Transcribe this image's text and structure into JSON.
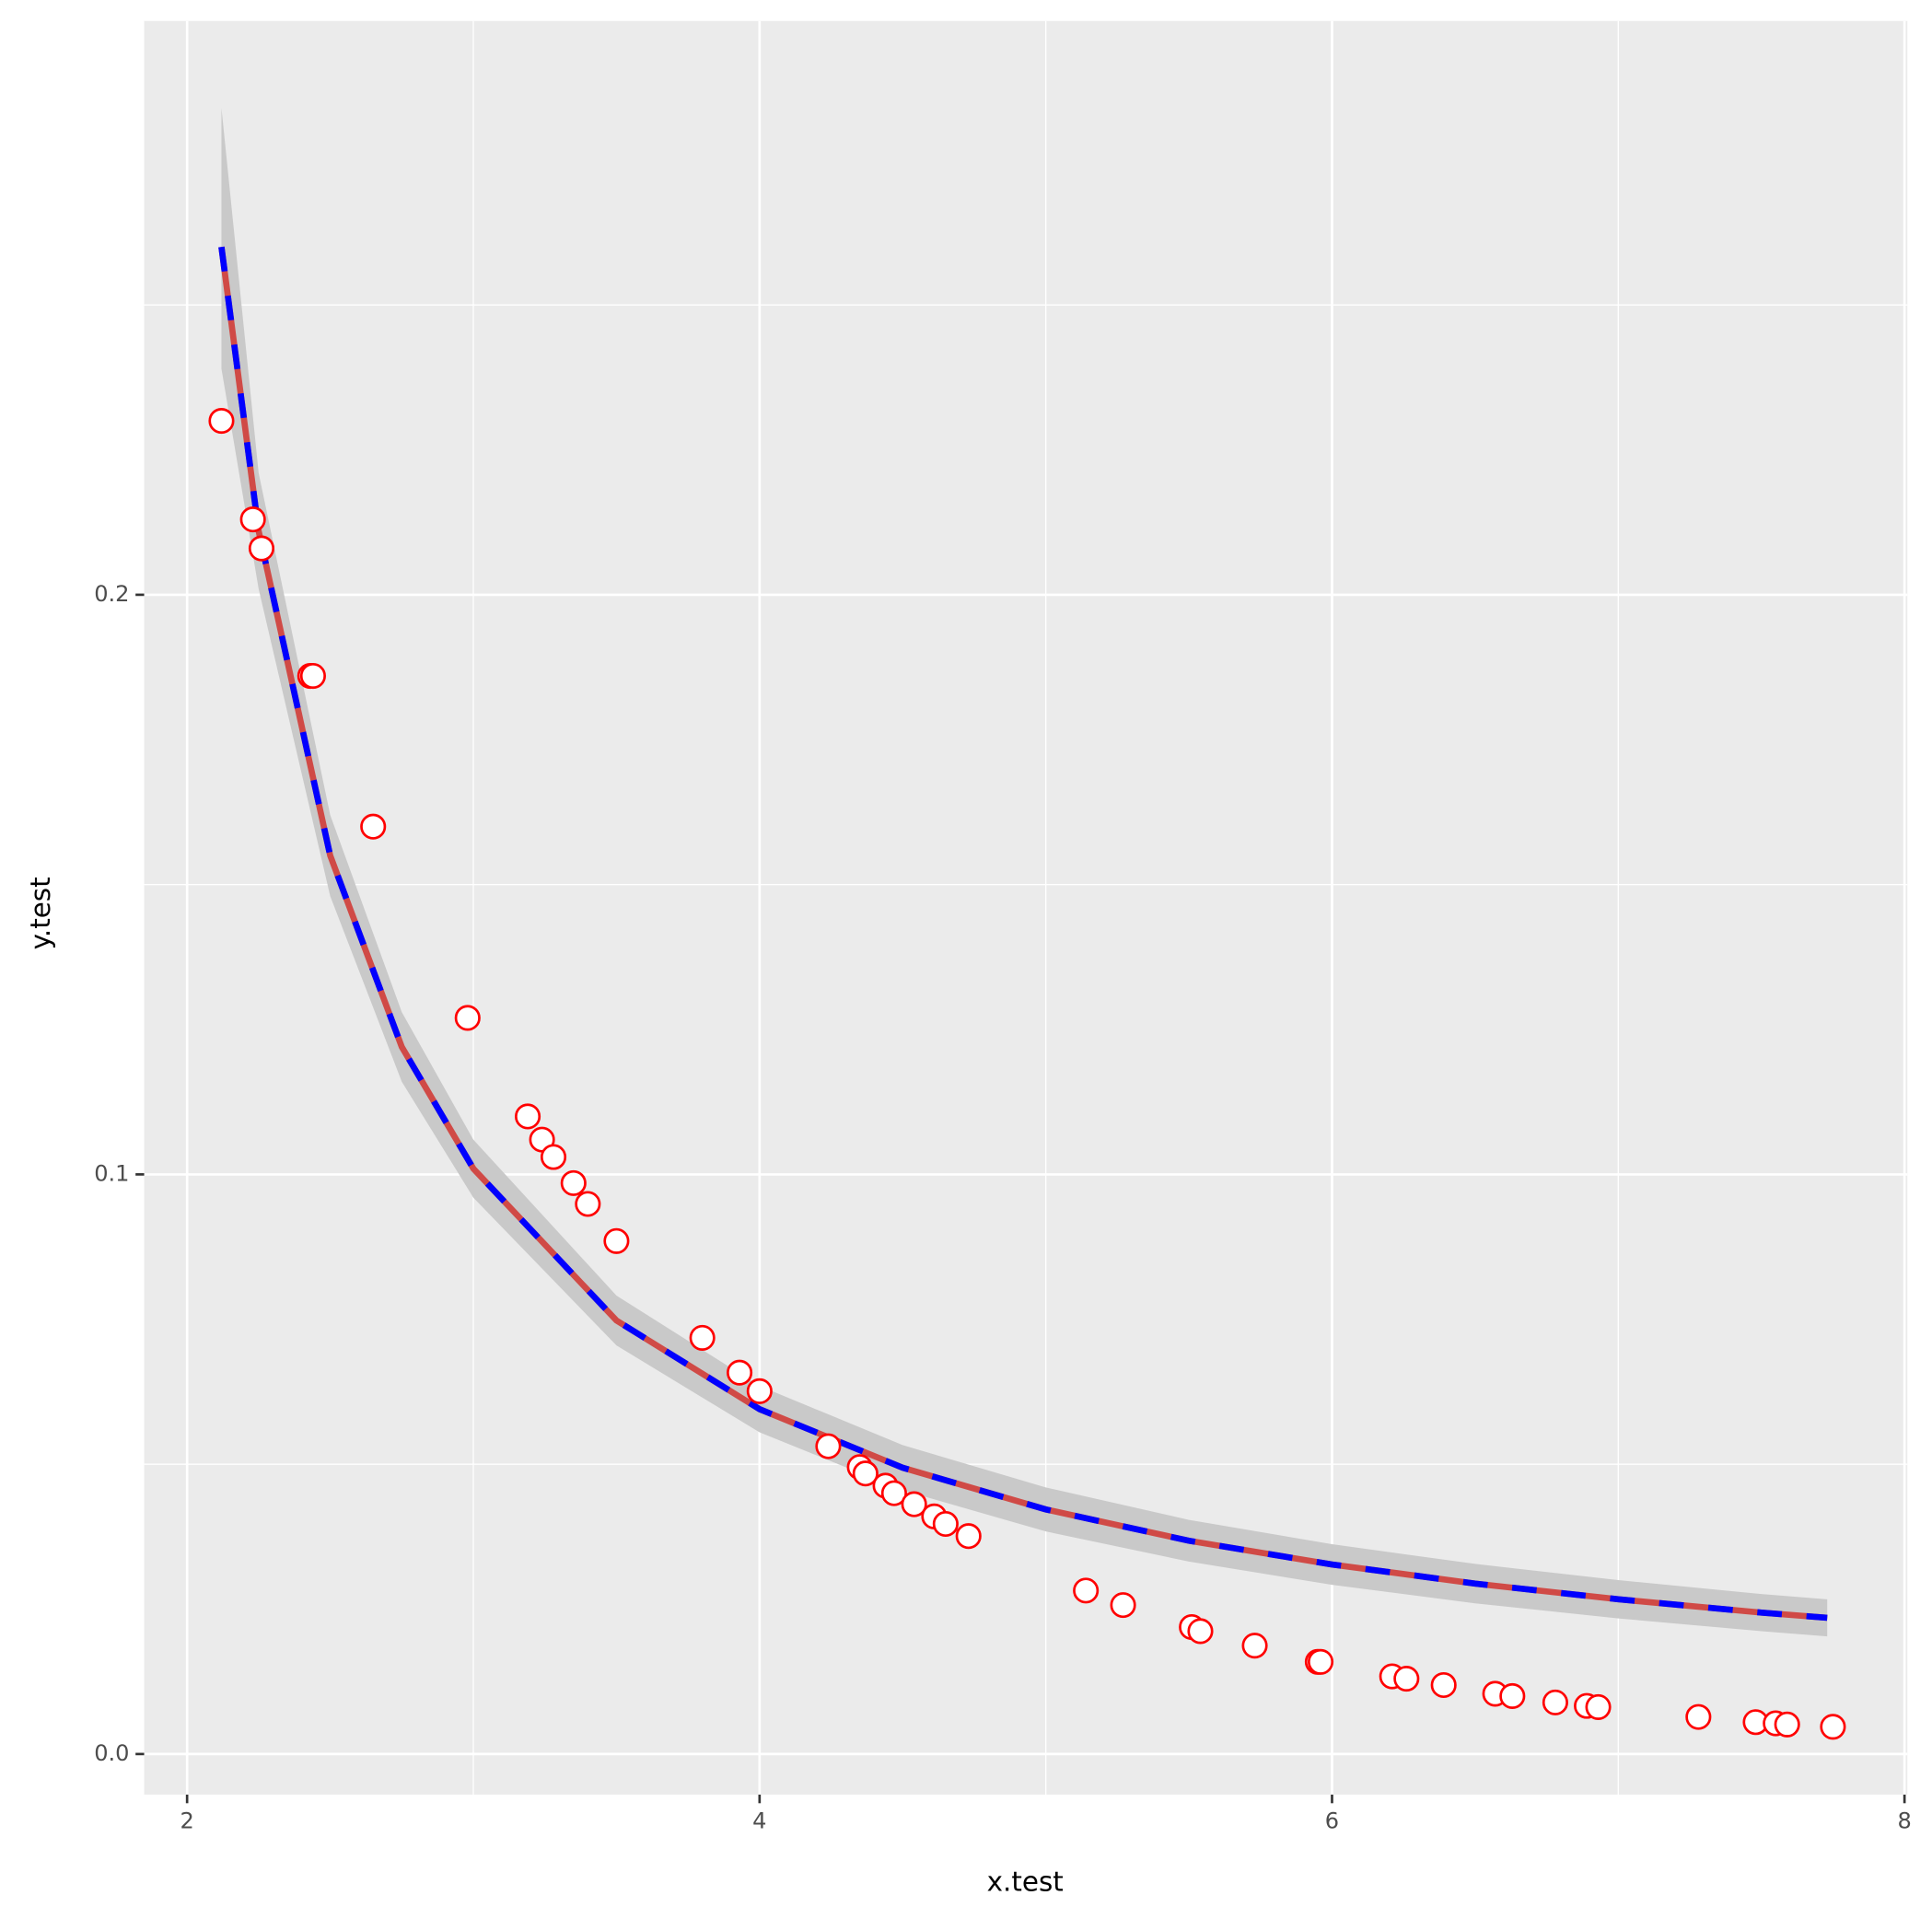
{
  "chart_data": {
    "type": "scatter",
    "xlabel": "x.test",
    "ylabel": "y.test",
    "xlim": [
      1.85,
      8.01
    ],
    "ylim": [
      -0.007,
      0.299
    ],
    "xticks": [
      2,
      4,
      6,
      8
    ],
    "yticks": [
      {
        "value": 0,
        "label": "0.0"
      },
      0.1,
      0.2
    ],
    "xminor": [
      3,
      5,
      7
    ],
    "yminor": [
      0.05,
      0.15,
      0.25
    ],
    "grid": true,
    "points": {
      "color": "#ff0000",
      "x": [
        2.12,
        2.23,
        2.26,
        2.43,
        2.44,
        2.65,
        2.98,
        3.19,
        3.24,
        3.28,
        3.35,
        3.4,
        3.5,
        3.8,
        3.93,
        4.0,
        4.24,
        4.35,
        4.37,
        4.44,
        4.47,
        4.54,
        4.61,
        4.65,
        4.73,
        5.14,
        5.27,
        5.51,
        5.54,
        5.73,
        5.95,
        5.96,
        6.21,
        6.26,
        6.39,
        6.57,
        6.63,
        6.78,
        6.89,
        6.93,
        7.28,
        7.48,
        7.55,
        7.59,
        7.75
      ],
      "y": [
        0.23,
        0.213,
        0.208,
        0.186,
        0.186,
        0.16,
        0.127,
        0.11,
        0.106,
        0.103,
        0.0985,
        0.0949,
        0.0885,
        0.0718,
        0.0658,
        0.0626,
        0.0531,
        0.0495,
        0.0484,
        0.0463,
        0.045,
        0.0431,
        0.041,
        0.0397,
        0.0376,
        0.0282,
        0.0257,
        0.0219,
        0.0212,
        0.0187,
        0.0159,
        0.0159,
        0.0134,
        0.013,
        0.0119,
        0.0104,
        0.01,
        0.0089,
        0.0083,
        0.0081,
        0.0064,
        0.0055,
        0.0053,
        0.0051,
        0.0047
      ]
    },
    "band": {
      "color": "#c9c9c9",
      "x": [
        2.12,
        2.25,
        2.5,
        2.75,
        3,
        3.5,
        4,
        4.5,
        5,
        5.5,
        6,
        6.5,
        7,
        7.5,
        7.73
      ],
      "lower": [
        0.239,
        0.201,
        0.148,
        0.116,
        0.096,
        0.0705,
        0.0555,
        0.0455,
        0.0384,
        0.0332,
        0.0292,
        0.026,
        0.0234,
        0.0212,
        0.0203
      ],
      "upper": [
        0.284,
        0.221,
        0.162,
        0.128,
        0.106,
        0.0791,
        0.0635,
        0.0533,
        0.046,
        0.0404,
        0.0362,
        0.0328,
        0.03,
        0.0276,
        0.0267
      ]
    },
    "series": [
      {
        "color": "#d04a46",
        "dashed": false,
        "values": [
          0.26,
          0.211,
          0.155,
          0.122,
          0.101,
          0.0748,
          0.0595,
          0.0494,
          0.0422,
          0.0368,
          0.0327,
          0.0294,
          0.0267,
          0.0244,
          0.0235
        ]
      },
      {
        "color": "#0000ff",
        "dashed": true,
        "values": [
          0.26,
          0.211,
          0.155,
          0.122,
          0.101,
          0.0748,
          0.0595,
          0.0494,
          0.0422,
          0.0368,
          0.0327,
          0.0294,
          0.0267,
          0.0244,
          0.0235
        ]
      }
    ]
  }
}
